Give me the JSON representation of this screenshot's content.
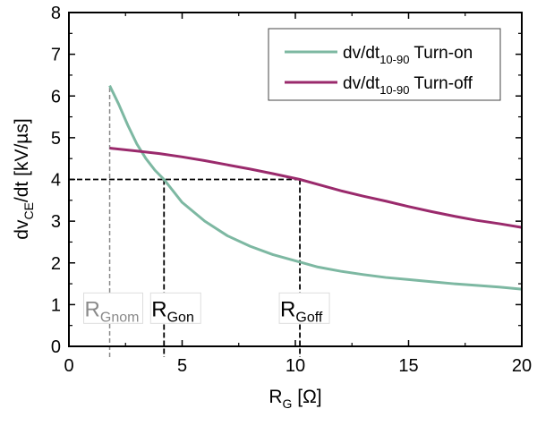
{
  "chart_data": {
    "type": "line",
    "title": "",
    "xlabel": "R",
    "xlabel_sub": "G",
    "xlabel_unit": " [Ω]",
    "ylabel": "dv",
    "ylabel_sub": "CE",
    "ylabel_rest": "/dt [kV/µs]",
    "xlim": [
      0,
      20
    ],
    "ylim": [
      0,
      8
    ],
    "xticks": [
      0,
      5,
      10,
      15,
      20
    ],
    "yticks": [
      0,
      1,
      2,
      3,
      4,
      5,
      6,
      7,
      8
    ],
    "grid": false,
    "legend_position": "top-right",
    "series": [
      {
        "name": "dv/dt",
        "name_sub": "10-90",
        "name_rest": " Turn-on",
        "color": "#7db8a2",
        "x": [
          1.8,
          2.2,
          2.6,
          3.0,
          3.4,
          3.8,
          4.2,
          5,
          6,
          7,
          8,
          9,
          10.2,
          11,
          12,
          13,
          14,
          15,
          16,
          17,
          18,
          19,
          20
        ],
        "y": [
          6.25,
          5.8,
          5.3,
          4.85,
          4.5,
          4.22,
          4.0,
          3.45,
          3.0,
          2.65,
          2.4,
          2.2,
          2.02,
          1.9,
          1.8,
          1.72,
          1.65,
          1.6,
          1.55,
          1.5,
          1.46,
          1.42,
          1.37
        ]
      },
      {
        "name": "dv/dt",
        "name_sub": "10-90",
        "name_rest": " Turn-off",
        "color": "#9a2a6c",
        "x": [
          1.8,
          3,
          4,
          5,
          6,
          7,
          8,
          9,
          10.2,
          11,
          12,
          13,
          14,
          15,
          16,
          17,
          18,
          19,
          20
        ],
        "y": [
          4.75,
          4.68,
          4.62,
          4.54,
          4.45,
          4.35,
          4.25,
          4.14,
          4.0,
          3.88,
          3.73,
          3.6,
          3.48,
          3.35,
          3.23,
          3.12,
          3.02,
          2.94,
          2.85
        ]
      }
    ],
    "reference_lines": {
      "level": 4,
      "rgnom_x": 1.8,
      "rgon_x": 4.2,
      "rgoff_x": 10.2
    },
    "annotations": [
      {
        "main": "R",
        "sub": "Gnom",
        "color": "#8a8a8a"
      },
      {
        "main": "R",
        "sub": "Gon",
        "color": "#000000"
      },
      {
        "main": "R",
        "sub": "Goff",
        "color": "#000000"
      }
    ]
  }
}
